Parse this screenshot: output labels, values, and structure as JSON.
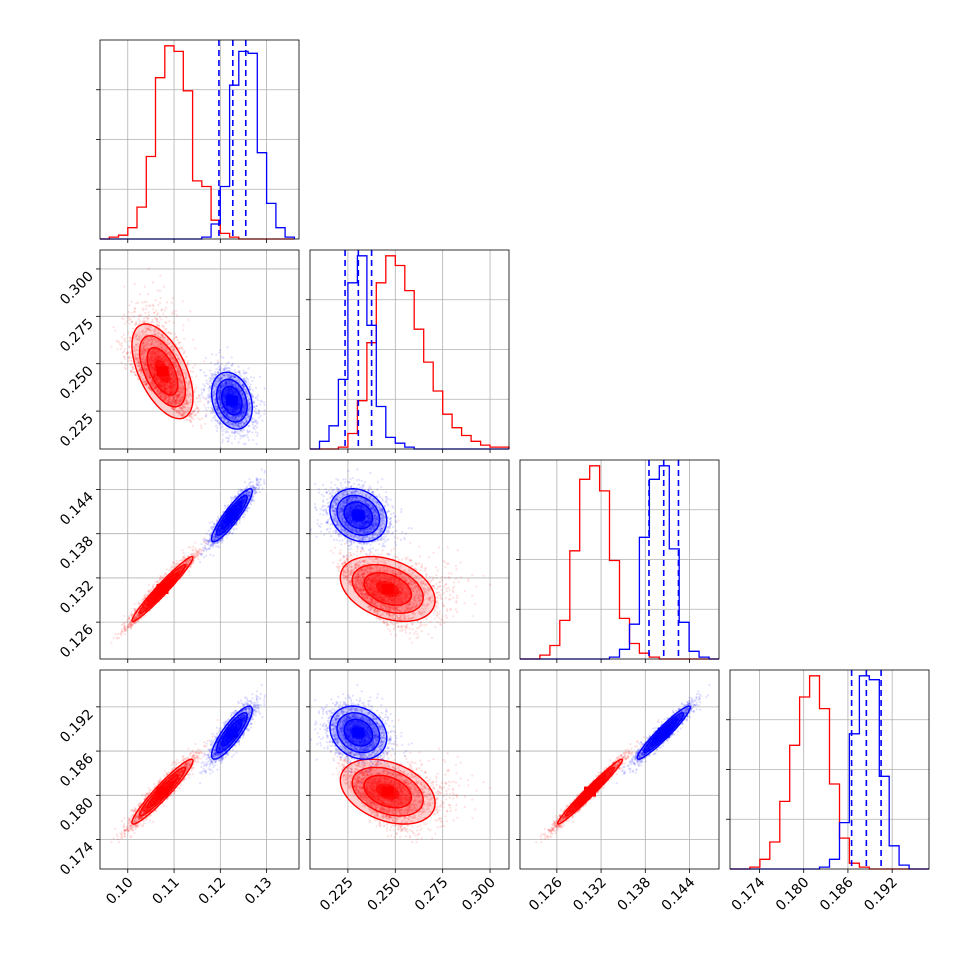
{
  "colors": {
    "red": "#ff0000",
    "blue": "#0000ff",
    "grid": "#b0b0b0",
    "frame": "#000000"
  },
  "chart_data": {
    "type": "corner",
    "grid": true,
    "parameters": [
      {
        "range": [
          0.094,
          0.137
        ],
        "ticks": [
          0.1,
          0.11,
          0.12,
          0.13
        ],
        "tick_labels": [
          "0.10",
          "0.11",
          "0.12",
          "0.13"
        ]
      },
      {
        "range": [
          0.205,
          0.31
        ],
        "ticks": [
          0.225,
          0.25,
          0.275,
          0.3
        ],
        "tick_labels": [
          "0.225",
          "0.250",
          "0.275",
          "0.300"
        ]
      },
      {
        "range": [
          0.121,
          0.148
        ],
        "ticks": [
          0.126,
          0.132,
          0.138,
          0.144
        ],
        "tick_labels": [
          "0.126",
          "0.132",
          "0.138",
          "0.144"
        ]
      },
      {
        "range": [
          0.17,
          0.197
        ],
        "ticks": [
          0.174,
          0.18,
          0.186,
          0.192
        ],
        "tick_labels": [
          "0.174",
          "0.180",
          "0.186",
          "0.192"
        ]
      }
    ],
    "series": [
      {
        "color": "#ff0000",
        "mean": [
          0.1075,
          0.246,
          0.1305,
          0.1805
        ],
        "std": [
          0.0033,
          0.0125,
          0.0022,
          0.0022
        ],
        "correlation": [
          [
            1,
            -0.55,
            0.97,
            0.95
          ],
          [
            -0.55,
            1,
            -0.35,
            -0.35
          ],
          [
            0.97,
            -0.35,
            1,
            0.98
          ],
          [
            0.95,
            -0.35,
            0.98,
            1
          ]
        ],
        "skew": [
          0,
          0.8,
          0,
          0
        ],
        "quantile_lines": false,
        "histograms": [
          {
            "edges_start": 0.094,
            "bin_width": 0.002,
            "counts": [
              0,
              1,
              2,
              6,
              17,
              44,
              86,
              103,
              100,
              79,
              31,
              28,
              10,
              3,
              1,
              0,
              0,
              0,
              0,
              0,
              0
            ]
          },
          {
            "edges_start": 0.205,
            "bin_width": 0.005,
            "counts": [
              0,
              0,
              0,
              1,
              8,
              25,
              55,
              86,
              100,
              95,
              82,
              62,
              45,
              30,
              18,
              11,
              7,
              4,
              2,
              1,
              1
            ]
          },
          {
            "edges_start": 0.121,
            "bin_width": 0.00135,
            "counts": [
              0,
              0,
              2,
              7,
              20,
              56,
              93,
              100,
              87,
              51,
              21,
              8,
              3,
              1,
              0,
              0,
              0,
              0,
              0,
              0
            ]
          },
          {
            "edges_start": 0.17,
            "bin_width": 0.00135,
            "counts": [
              0,
              0,
              1,
              5,
              14,
              35,
              64,
              89,
              100,
              83,
              44,
              16,
              3,
              1,
              0,
              0,
              0,
              0,
              0,
              0
            ]
          }
        ]
      },
      {
        "color": "#0000ff",
        "mean": [
          0.1225,
          0.2305,
          0.1405,
          0.1885
        ],
        "std": [
          0.0022,
          0.0075,
          0.0018,
          0.0018
        ],
        "correlation": [
          [
            1,
            -0.25,
            0.9,
            0.85
          ],
          [
            -0.25,
            1,
            -0.2,
            -0.2
          ],
          [
            0.9,
            -0.2,
            1,
            0.95
          ],
          [
            0.85,
            -0.2,
            0.95,
            1
          ]
        ],
        "skew": [
          0,
          0,
          0,
          0
        ],
        "quantile_lines": true,
        "quantiles": [
          [
            0.1197,
            0.1227,
            0.1255
          ],
          [
            0.2235,
            0.2305,
            0.2375
          ],
          [
            0.1385,
            0.1405,
            0.1425
          ],
          [
            0.1865,
            0.1885,
            0.1905
          ]
        ],
        "histograms": [
          {
            "edges_start": 0.094,
            "bin_width": 0.002,
            "counts": [
              0,
              0,
              0,
              0,
              0,
              0,
              0,
              0,
              0,
              0,
              0,
              1,
              8,
              28,
              82,
              100,
              99,
              46,
              19,
              6,
              1
            ]
          },
          {
            "edges_start": 0.205,
            "bin_width": 0.005,
            "counts": [
              0,
              4,
              12,
              36,
              86,
              100,
              64,
              22,
              6,
              3,
              1,
              0,
              0,
              0,
              0,
              0,
              0,
              0,
              0,
              0,
              0
            ]
          },
          {
            "edges_start": 0.121,
            "bin_width": 0.00135,
            "counts": [
              0,
              0,
              0,
              0,
              0,
              0,
              0,
              0,
              0,
              1,
              5,
              18,
              63,
              93,
              100,
              57,
              19,
              4,
              1,
              0
            ]
          },
          {
            "edges_start": 0.17,
            "bin_width": 0.00135,
            "counts": [
              0,
              0,
              0,
              0,
              0,
              0,
              0,
              0,
              0,
              1,
              5,
              24,
              70,
              100,
              98,
              48,
              12,
              2,
              0,
              0
            ]
          }
        ]
      }
    ]
  }
}
